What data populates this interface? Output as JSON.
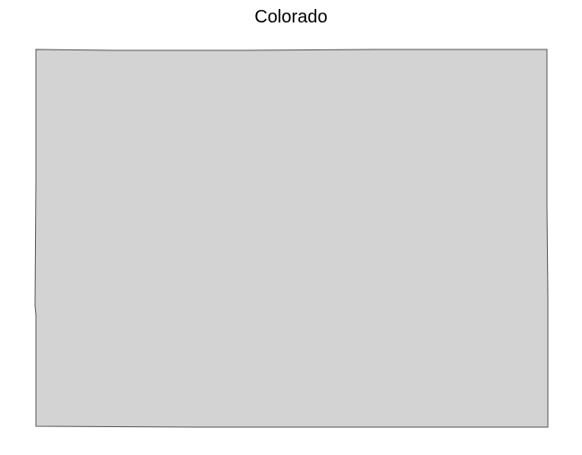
{
  "map": {
    "title": "Colorado",
    "fill_color": "#d3d3d3",
    "border_color": "#555555"
  }
}
